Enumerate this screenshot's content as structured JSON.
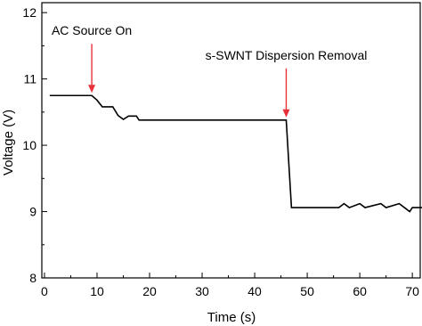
{
  "chart_data": {
    "type": "line",
    "x_label": "Time (s)",
    "y_label": "Voltage (V)",
    "x": [
      1,
      9,
      10,
      11,
      13,
      14,
      15,
      16,
      17.5,
      18,
      46,
      47,
      56,
      57,
      58,
      60,
      61,
      64,
      65,
      67.5,
      68.5,
      69.5,
      70,
      72
    ],
    "series": [
      {
        "color": "#000000",
        "values": [
          10.75,
          10.75,
          10.68,
          10.58,
          10.58,
          10.45,
          10.39,
          10.44,
          10.44,
          10.38,
          10.38,
          9.06,
          9.06,
          9.12,
          9.06,
          9.12,
          9.06,
          9.12,
          9.06,
          9.12,
          9.06,
          9.0,
          9.06,
          9.06
        ]
      }
    ],
    "xlim": [
      -0.5,
      71.5
    ],
    "xticks": [
      0,
      10,
      20,
      30,
      40,
      50,
      60,
      70
    ],
    "ylim": [
      8,
      12.15
    ],
    "yticks": [
      8,
      9,
      10,
      11,
      12
    ],
    "annotations": [
      {
        "text": "AC Source On",
        "x": 9,
        "color": "#e8303a"
      },
      {
        "text": "s-SWNT Dispersion Removal",
        "x": 46,
        "color": "#e8303a"
      }
    ]
  }
}
